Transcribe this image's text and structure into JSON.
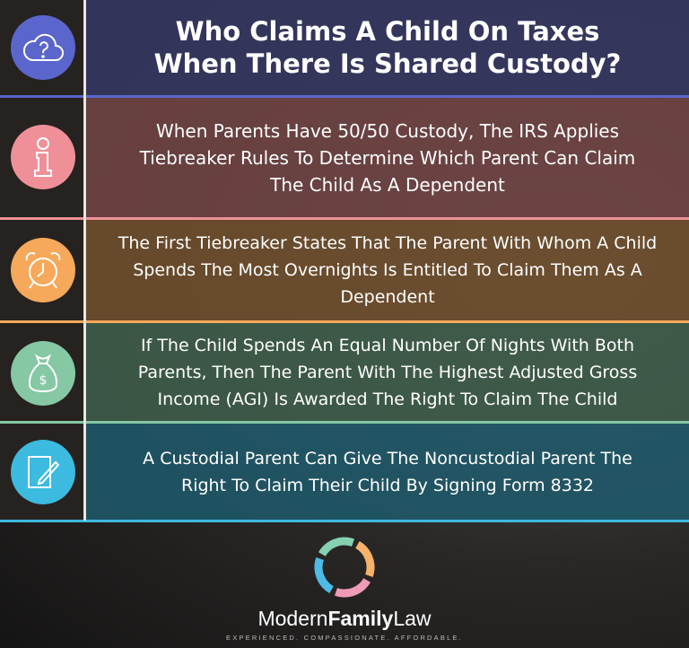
{
  "title": "Who Claims A Child On Taxes When There Is Shared Custody?",
  "rows": [
    {
      "text": "When Parents Have 50/50 Custody, The IRS Applies Tiebreaker Rules To Determine Which Parent Can Claim The Child As A Dependent",
      "icon": "info-icon",
      "color": "#ef9099"
    },
    {
      "text": "The First Tiebreaker States That The Parent With Whom A Child Spends The Most Overnights Is Entitled To Claim Them As A Dependent",
      "icon": "alarm-clock-icon",
      "color": "#f6a95a"
    },
    {
      "text": "If The Child Spends An Equal Number Of Nights With Both Parents, Then The Parent With The Highest Adjusted Gross Income (AGI) Is Awarded The Right To Claim The Child",
      "icon": "money-bag-icon",
      "color": "#86c7a4"
    },
    {
      "text": "A Custodial Parent Can Give The Noncustodial Parent The Right To Claim Their Child By Signing Form 8332",
      "icon": "document-pen-icon",
      "color": "#3cbadf"
    }
  ],
  "title_icon": {
    "icon": "cloud-question-icon",
    "color": "#5a66cc"
  },
  "brand": {
    "part1": "Modern",
    "part2": "Family",
    "part3": "Law",
    "tagline": "EXPERIENCED. COMPASSIONATE. AFFORDABLE."
  }
}
